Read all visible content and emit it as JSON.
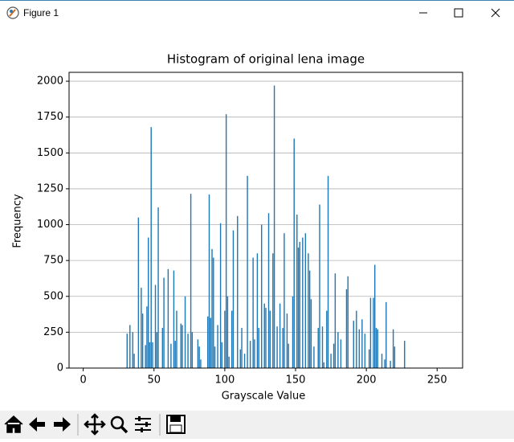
{
  "window": {
    "title": "Figure 1"
  },
  "chart_data": {
    "type": "bar",
    "title": "Histogram of original lena image",
    "x_label": "Grayscale Value",
    "y_label": "Frequency",
    "color": "#1f77b4",
    "x": [
      31,
      33,
      35,
      36,
      39,
      41,
      42,
      44,
      45,
      46,
      47,
      48,
      49,
      51,
      52,
      53,
      56,
      57,
      60,
      62,
      64,
      65,
      66,
      69,
      70,
      72,
      74,
      76,
      77,
      81,
      82,
      83,
      88,
      89,
      90,
      91,
      92,
      93,
      95,
      97,
      98,
      100,
      101,
      102,
      103,
      105,
      106,
      109,
      111,
      112,
      114,
      116,
      118,
      120,
      121,
      123,
      124,
      126,
      128,
      129,
      131,
      132,
      134,
      135,
      137,
      139,
      141,
      142,
      144,
      145,
      148,
      149,
      151,
      152,
      153,
      155,
      157,
      159,
      160,
      161,
      163,
      166,
      167,
      169,
      170,
      172,
      173,
      175,
      177,
      178,
      180,
      182,
      186,
      187,
      191,
      193,
      195,
      197,
      199,
      202,
      203,
      205,
      206,
      207,
      208,
      211,
      213,
      214,
      217,
      219,
      220,
      227
    ],
    "values": [
      240,
      300,
      250,
      100,
      1050,
      560,
      380,
      160,
      430,
      910,
      180,
      1680,
      180,
      580,
      250,
      1120,
      280,
      630,
      690,
      170,
      680,
      190,
      400,
      310,
      300,
      500,
      240,
      1215,
      250,
      200,
      150,
      60,
      360,
      1210,
      350,
      830,
      770,
      150,
      300,
      1010,
      180,
      400,
      1770,
      500,
      80,
      400,
      960,
      1060,
      130,
      280,
      100,
      1340,
      190,
      770,
      200,
      800,
      280,
      1000,
      450,
      420,
      1080,
      400,
      800,
      1970,
      290,
      450,
      280,
      940,
      380,
      170,
      500,
      1600,
      1070,
      840,
      880,
      910,
      940,
      800,
      680,
      480,
      150,
      280,
      1140,
      290,
      40,
      400,
      1340,
      100,
      170,
      660,
      250,
      200,
      550,
      640,
      330,
      400,
      270,
      340,
      240,
      130,
      490,
      490,
      720,
      280,
      270,
      100,
      60,
      460,
      50,
      270,
      150,
      190
    ],
    "xlim": [
      -10,
      268
    ],
    "ylim": [
      0,
      2062
    ],
    "xticks": [
      0,
      50,
      100,
      150,
      200,
      250
    ],
    "yticks": [
      0,
      250,
      500,
      750,
      1000,
      1250,
      1500,
      1750,
      2000
    ],
    "grid": "y"
  }
}
